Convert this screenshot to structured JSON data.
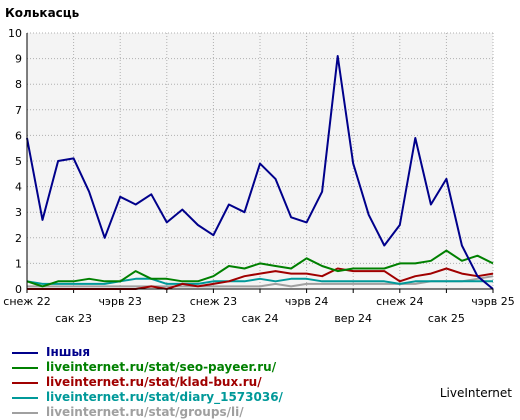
{
  "chart_data": {
    "type": "line",
    "title": "Колькасць",
    "ylim": [
      0,
      10
    ],
    "yticks": [
      "0",
      "1",
      "2",
      "3",
      "4",
      "5",
      "6",
      "7",
      "8",
      "9",
      "10"
    ],
    "xlabels_top": [
      "снеж 22",
      "чэрв 23",
      "снеж 23",
      "чэрв 24",
      "снеж 24",
      "чэрв 25"
    ],
    "xlabels_bottom": [
      "сак 23",
      "вер 23",
      "сак 24",
      "вер 24",
      "сак 25"
    ],
    "grid": true,
    "n_points": 31,
    "series": [
      {
        "name": "Іншыя",
        "color": "#00008b",
        "values": [
          5.9,
          2.7,
          5.0,
          5.1,
          3.8,
          2.0,
          3.6,
          3.3,
          3.7,
          2.6,
          3.1,
          2.5,
          2.1,
          3.3,
          3.0,
          4.9,
          4.3,
          2.8,
          2.6,
          3.8,
          9.1,
          4.9,
          2.9,
          1.7,
          2.5,
          5.9,
          3.3,
          4.3,
          1.7,
          0.5,
          0.0
        ]
      },
      {
        "name": "liveinternet.ru/stat/seo-payeer.ru/",
        "color": "#008000",
        "values": [
          0.3,
          0.1,
          0.3,
          0.3,
          0.4,
          0.3,
          0.3,
          0.7,
          0.4,
          0.4,
          0.3,
          0.3,
          0.5,
          0.9,
          0.8,
          1.0,
          0.9,
          0.8,
          1.2,
          0.9,
          0.7,
          0.8,
          0.8,
          0.8,
          1.0,
          1.0,
          1.1,
          1.5,
          1.1,
          1.3,
          1.0
        ]
      },
      {
        "name": "liveinternet.ru/stat/klad-bux.ru/",
        "color": "#a00000",
        "values": [
          0.0,
          0.0,
          0.0,
          0.0,
          0.0,
          0.0,
          0.0,
          0.0,
          0.1,
          0.0,
          0.2,
          0.1,
          0.2,
          0.3,
          0.5,
          0.6,
          0.7,
          0.6,
          0.6,
          0.5,
          0.8,
          0.7,
          0.7,
          0.7,
          0.3,
          0.5,
          0.6,
          0.8,
          0.6,
          0.5,
          0.6
        ]
      },
      {
        "name": "liveinternet.ru/stat/diary_1573036/",
        "color": "#009999",
        "values": [
          0.3,
          0.2,
          0.2,
          0.2,
          0.2,
          0.2,
          0.3,
          0.4,
          0.4,
          0.2,
          0.2,
          0.2,
          0.3,
          0.3,
          0.3,
          0.4,
          0.3,
          0.4,
          0.4,
          0.3,
          0.3,
          0.3,
          0.3,
          0.3,
          0.2,
          0.3,
          0.3,
          0.3,
          0.3,
          0.3,
          0.3
        ]
      },
      {
        "name": "liveinternet.ru/stat/groups/li/",
        "color": "#a0a0a0",
        "values": [
          0.1,
          0.1,
          0.1,
          0.1,
          0.1,
          0.1,
          0.1,
          0.1,
          0.1,
          0.1,
          0.1,
          0.1,
          0.1,
          0.1,
          0.1,
          0.1,
          0.2,
          0.1,
          0.2,
          0.2,
          0.2,
          0.2,
          0.2,
          0.2,
          0.2,
          0.2,
          0.3,
          0.3,
          0.3,
          0.4,
          0.5
        ]
      }
    ]
  },
  "brand": "LiveInternet"
}
